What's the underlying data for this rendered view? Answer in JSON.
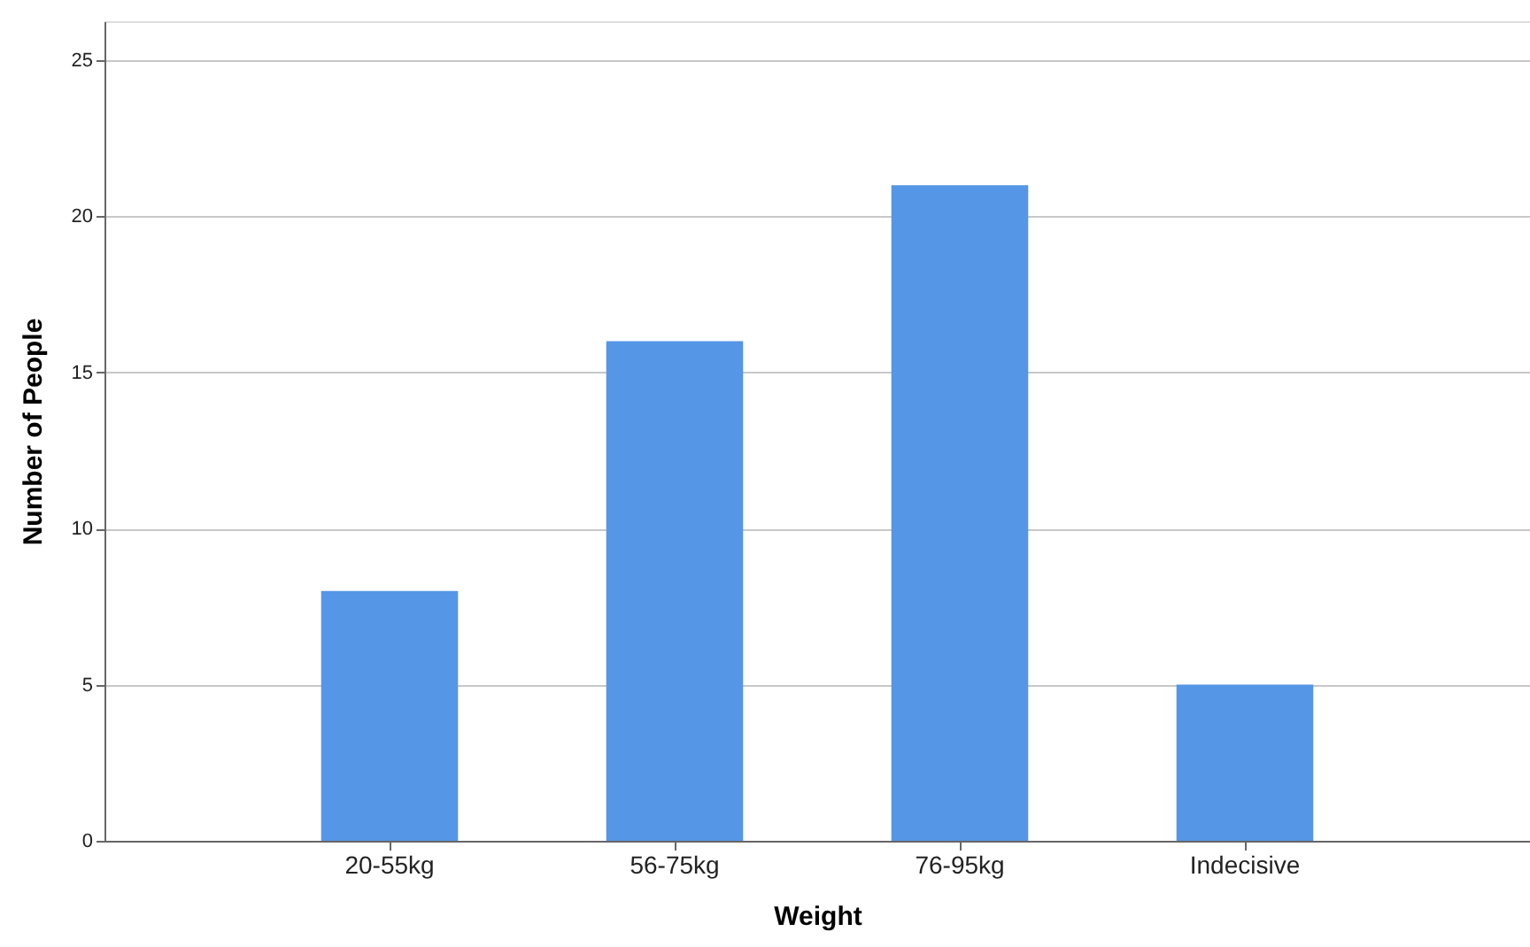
{
  "chart_data": {
    "type": "bar",
    "xlabel": "Weight",
    "ylabel": "Number of People",
    "categories": [
      "20-55kg",
      "56-75kg",
      "76-95kg",
      "Indecisive"
    ],
    "values": [
      8,
      16,
      21,
      5
    ],
    "color": "#5596e6",
    "ylim": [
      0,
      26.25
    ],
    "yticks": [
      0,
      5,
      10,
      15,
      20,
      25
    ],
    "grid": "y"
  }
}
